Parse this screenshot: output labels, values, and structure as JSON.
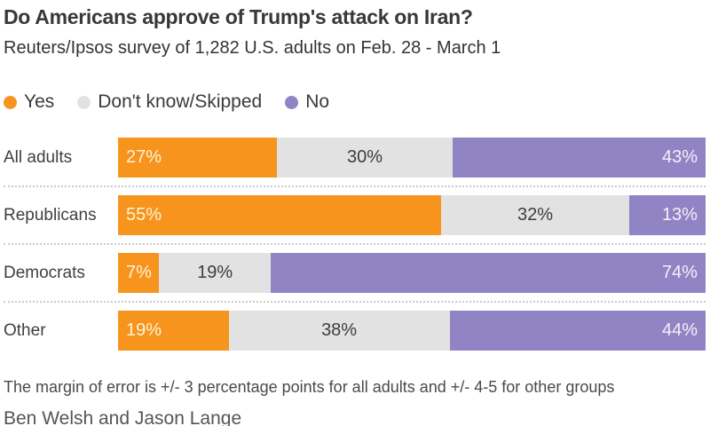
{
  "header": {
    "title": "Do Americans approve of Trump's attack on Iran?",
    "subtitle": "Reuters/Ipsos survey of 1,282 U.S. adults on Feb. 28 - March 1"
  },
  "legend": [
    {
      "label": "Yes",
      "color": "#F7941E"
    },
    {
      "label": "Don't know/Skipped",
      "color": "#E2E2E2"
    },
    {
      "label": "No",
      "color": "#9184C4"
    }
  ],
  "chart_data": {
    "type": "bar",
    "orientation": "horizontal",
    "stacked": true,
    "title": "Do Americans approve of Trump's attack on Iran?",
    "subtitle": "Reuters/Ipsos survey of 1,282 U.S. adults on Feb. 28 - March 1",
    "categories": [
      "All adults",
      "Republicans",
      "Democrats",
      "Other"
    ],
    "series": [
      {
        "name": "Yes",
        "color": "#F7941E",
        "text_color": "#FCF3D5",
        "values": [
          27,
          55,
          7,
          19
        ]
      },
      {
        "name": "Don't know/Skipped",
        "color": "#E2E2E2",
        "text_color": "#3D3D3D",
        "values": [
          30,
          32,
          19,
          38
        ]
      },
      {
        "name": "No",
        "color": "#9184C4",
        "text_color": "#F3F1FA",
        "values": [
          43,
          13,
          74,
          44
        ]
      }
    ],
    "value_suffix": "%",
    "xlim": [
      0,
      100
    ],
    "legend_position": "top",
    "grid": false
  },
  "footer": {
    "note": "The margin of error is +/- 3 percentage points for all adults and +/- 4-5 for other groups",
    "byline": "Ben Welsh and Jason Lange"
  }
}
